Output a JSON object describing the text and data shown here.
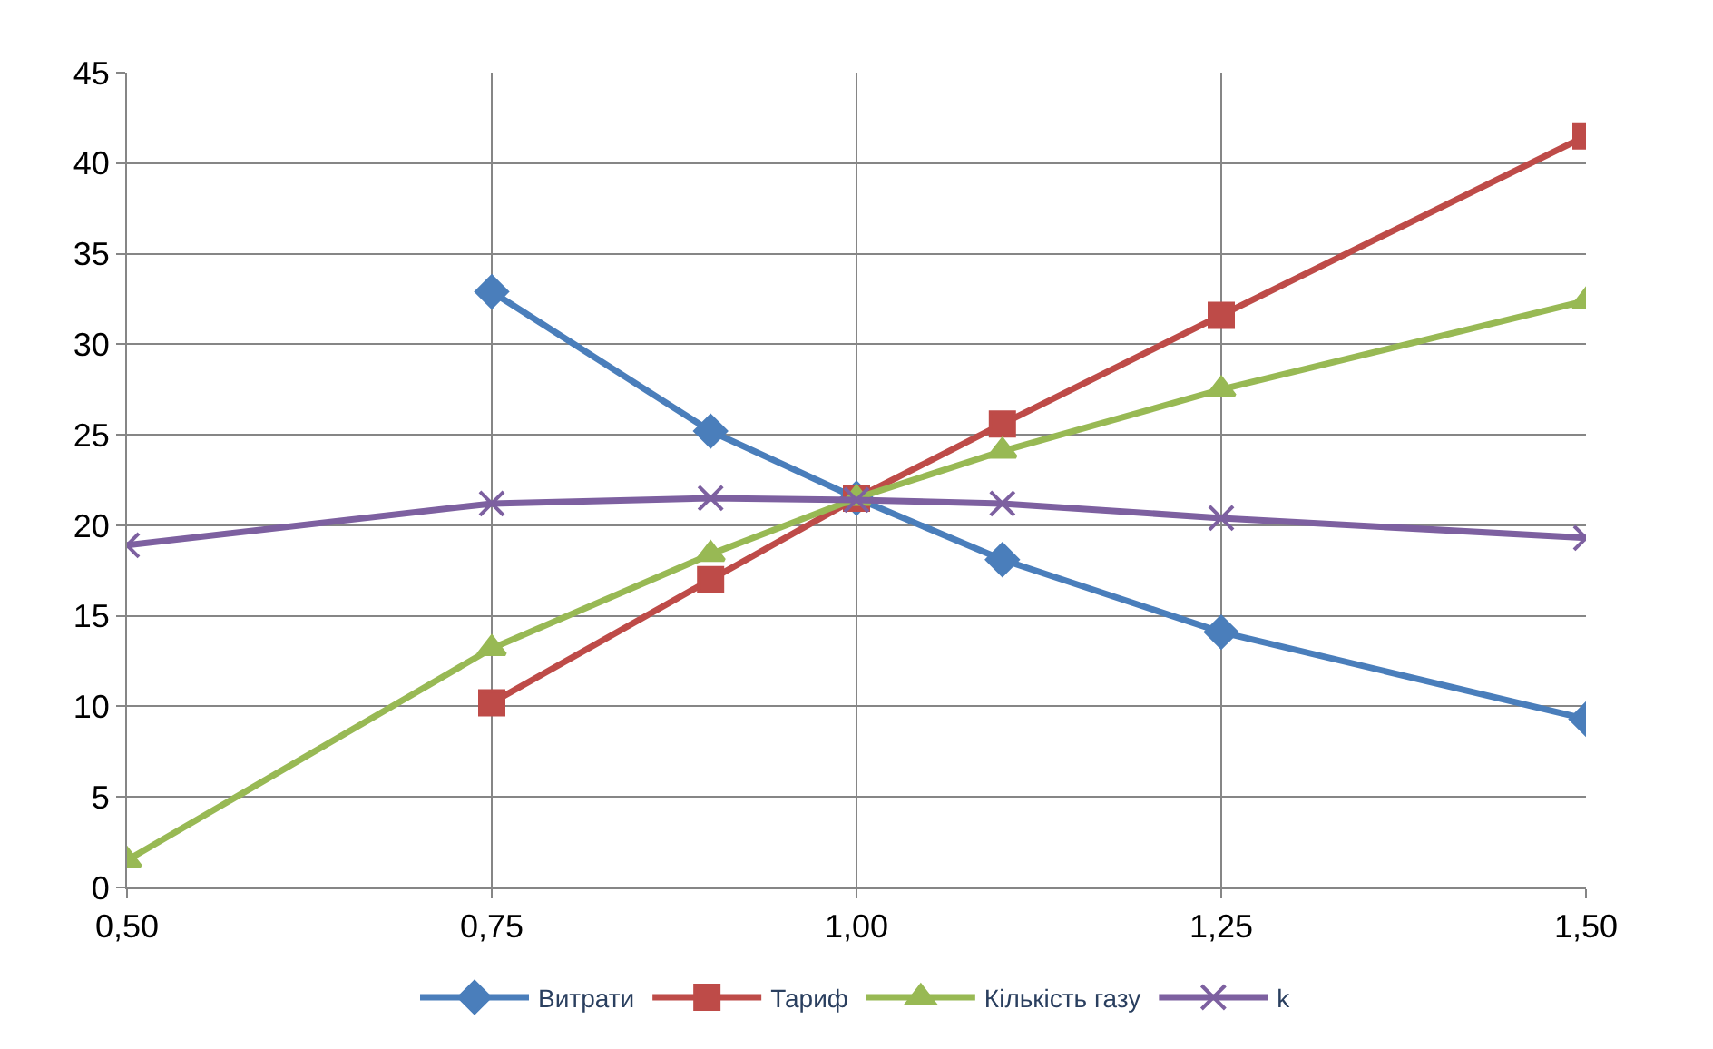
{
  "chart_data": {
    "type": "line",
    "xlim": [
      0.5,
      1.5
    ],
    "xticks": [
      {
        "value": 0.5,
        "label": "0,50"
      },
      {
        "value": 0.75,
        "label": "0,75"
      },
      {
        "value": 1.0,
        "label": "1,00"
      },
      {
        "value": 1.25,
        "label": "1,25"
      },
      {
        "value": 1.5,
        "label": "1,50"
      }
    ],
    "ylim": [
      0,
      45
    ],
    "yticks": [
      0,
      5,
      10,
      15,
      20,
      25,
      30,
      35,
      40,
      45
    ],
    "grid": true,
    "legend": "bottom",
    "line_style": "solid",
    "series": [
      {
        "name": "Витрати",
        "color": "#4a7ebb",
        "marker": "diamond",
        "x": [
          0.75,
          0.9,
          1.0,
          1.1,
          1.25,
          1.5
        ],
        "values": [
          32.9,
          25.2,
          21.5,
          18.1,
          14.1,
          9.3
        ]
      },
      {
        "name": "Тариф",
        "color": "#be4b48",
        "marker": "square",
        "x": [
          0.75,
          0.9,
          1.0,
          1.1,
          1.25,
          1.5
        ],
        "values": [
          10.2,
          17.0,
          21.5,
          25.6,
          31.6,
          41.5
        ]
      },
      {
        "name": "Кількість газу",
        "color": "#98b954",
        "marker": "triangle",
        "x": [
          0.5,
          0.75,
          0.9,
          1.0,
          1.1,
          1.25,
          1.5
        ],
        "values": [
          1.5,
          13.2,
          18.4,
          21.5,
          24.1,
          27.5,
          32.4
        ]
      },
      {
        "name": "k",
        "color": "#7d60a0",
        "marker": "cross",
        "x": [
          0.5,
          0.75,
          0.9,
          1.0,
          1.1,
          1.25,
          1.5
        ],
        "values": [
          18.9,
          21.2,
          21.5,
          21.4,
          21.2,
          20.4,
          19.3
        ]
      }
    ]
  }
}
